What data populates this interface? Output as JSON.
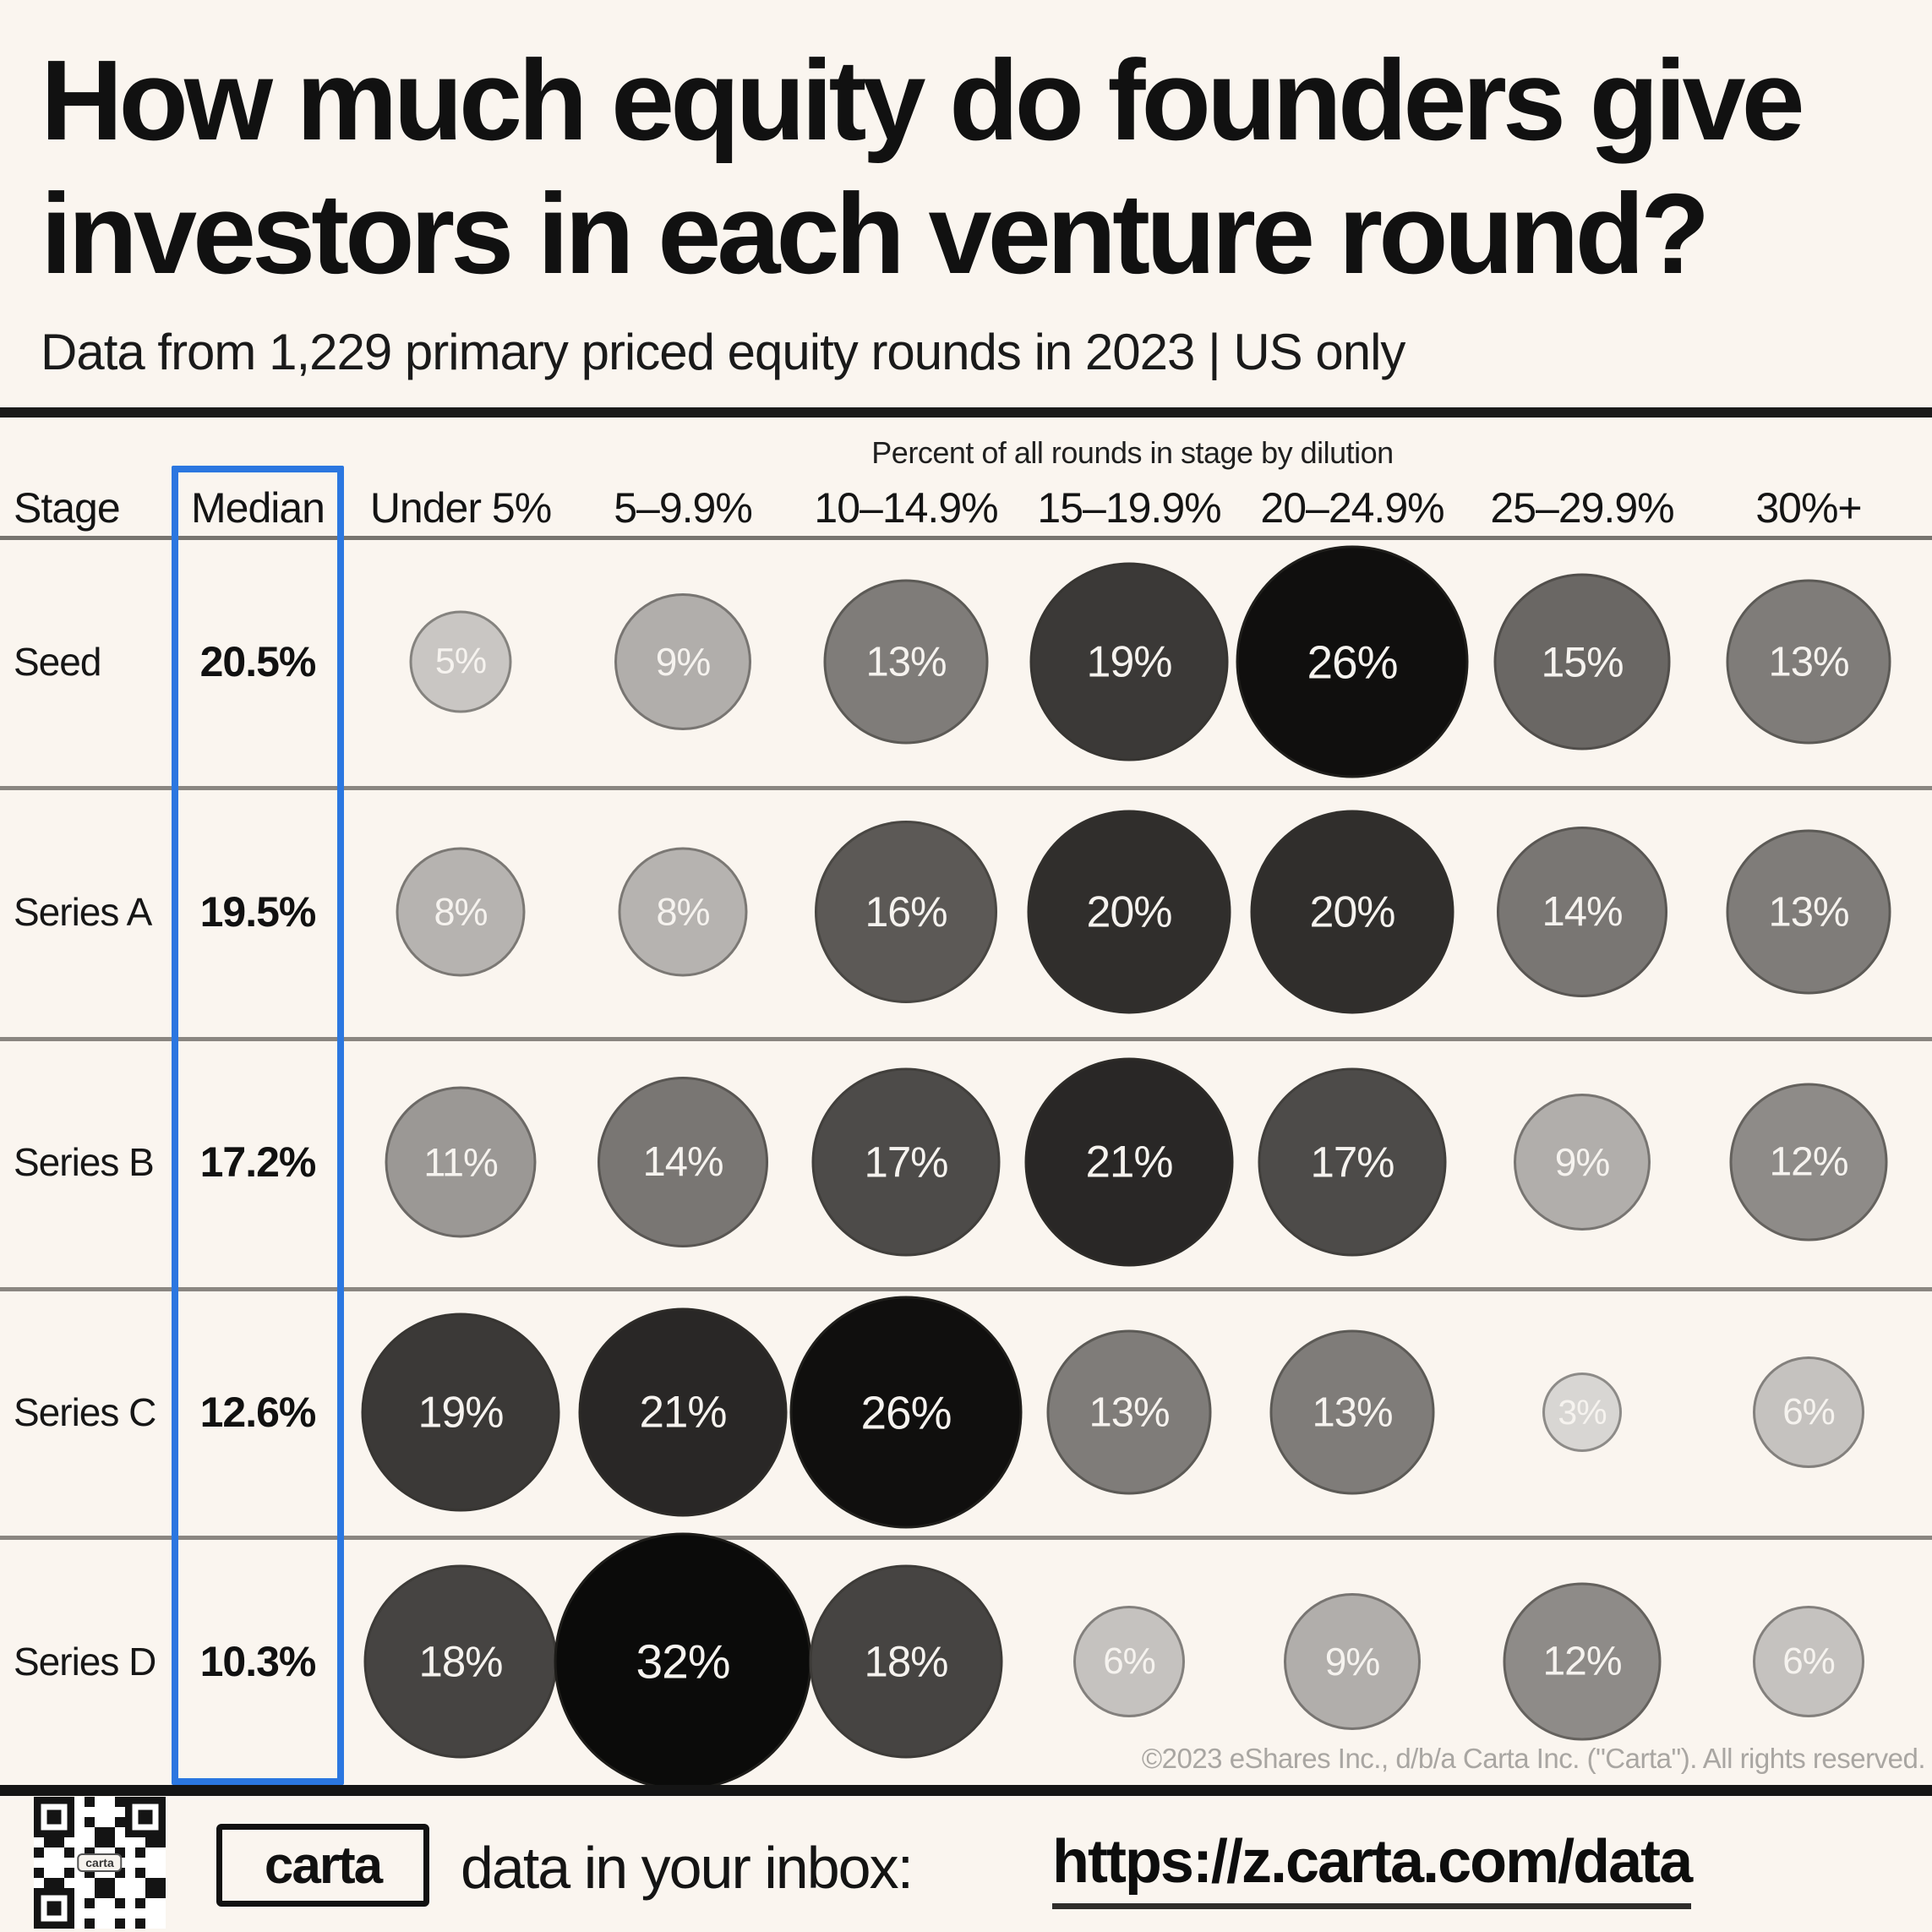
{
  "page": {
    "background": "#faf5ef",
    "accent_blue": "#2b77e0",
    "line_black": "#1a1a1a",
    "line_gray": "#8a8681"
  },
  "title": {
    "line1": "How much equity do founders give",
    "line2": "investors in each venture round?"
  },
  "subtitle": "Data from 1,229 primary priced equity rounds in 2023 | US only",
  "chart_data": {
    "type": "bubble",
    "title": "How much equity do founders give investors in each venture round?",
    "subtitle": "Data from 1,229 primary priced equity rounds in 2023 | US only",
    "group_header": "Percent of all rounds in stage by dilution",
    "stage_header": "Stage",
    "median_header": "Median",
    "columns": [
      "Under 5%",
      "5–9.9%",
      "10–14.9%",
      "15–19.9%",
      "20–24.9%",
      "25–29.9%",
      "30%+"
    ],
    "rows": [
      {
        "stage": "Seed",
        "median": "20.5%",
        "values": [
          5,
          9,
          13,
          19,
          26,
          15,
          13
        ]
      },
      {
        "stage": "Series A",
        "median": "19.5%",
        "values": [
          8,
          8,
          16,
          20,
          20,
          14,
          13
        ]
      },
      {
        "stage": "Series B",
        "median": "17.2%",
        "values": [
          11,
          14,
          17,
          21,
          17,
          9,
          12
        ]
      },
      {
        "stage": "Series C",
        "median": "12.6%",
        "values": [
          19,
          21,
          26,
          13,
          13,
          3,
          6
        ]
      },
      {
        "stage": "Series D",
        "median": "10.3%",
        "values": [
          18,
          32,
          18,
          6,
          9,
          12,
          6
        ]
      }
    ],
    "bubble_label_suffix": "%",
    "size_rule": "bubble diameter proportional to sqrt(value)",
    "shade_rule": "darker fill = higher percentage",
    "bubble_text_color": "#f6f3ef",
    "value_colors": {
      "3": "#d8d6d3",
      "5": "#c9c6c3",
      "6": "#c5c2bf",
      "8": "#b6b3b0",
      "9": "#b1aeab",
      "11": "#9b9895",
      "12": "#8e8b88",
      "13": "#7f7c79",
      "14": "#797673",
      "15": "#6a6764",
      "16": "#5c5956",
      "17": "#4d4b49",
      "18": "#464442",
      "19": "#3b3937",
      "20": "#302e2c",
      "21": "#292726",
      "26": "#100f0e",
      "32": "#0b0b0a"
    },
    "legend_position": "none",
    "grid": "horizontal row separators"
  },
  "footer": {
    "qr_label": "carta",
    "logo_text": "carta",
    "tagline": "data in your inbox:",
    "url": "https://z.carta.com/data"
  },
  "copyright": "©2023 eShares Inc., d/b/a Carta Inc. (\"Carta\"). All rights reserved."
}
